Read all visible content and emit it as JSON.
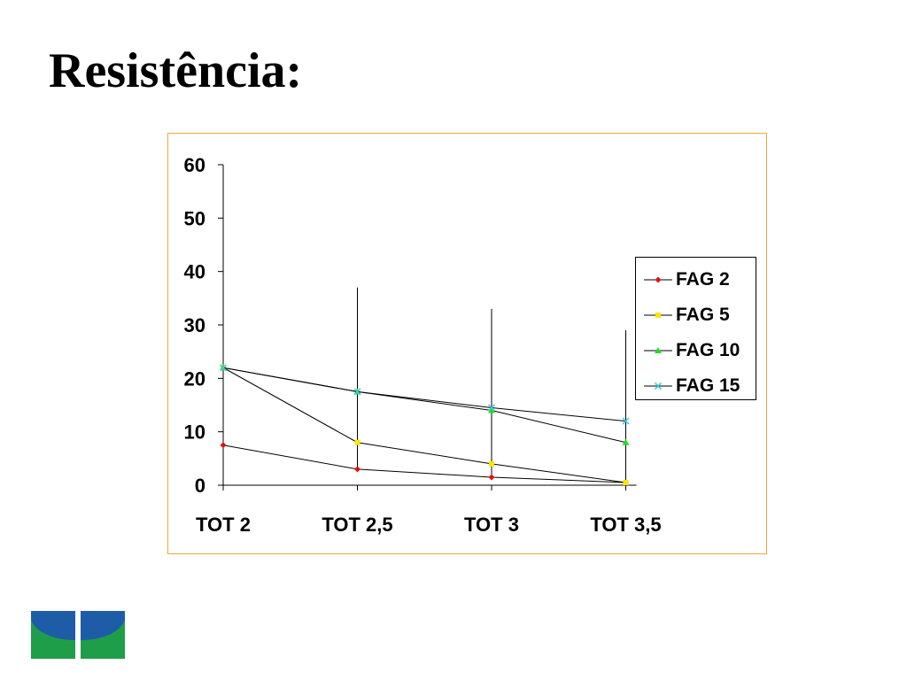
{
  "slide": {
    "title": "Resistência:"
  },
  "chart_data": {
    "type": "line",
    "title": "",
    "xlabel": "",
    "ylabel": "",
    "categories": [
      "TOT 2",
      "TOT 2,5",
      "TOT 3",
      "TOT 3,5"
    ],
    "ylim": [
      0,
      60
    ],
    "yticks": [
      0,
      10,
      20,
      30,
      40,
      50,
      60
    ],
    "grid": false,
    "legend_position": "right",
    "error_bars_upper": [
      [
        0,
        32,
        30,
        28
      ],
      [
        0,
        37,
        33,
        29
      ],
      [
        0,
        20,
        18,
        15
      ],
      [
        0,
        20,
        17,
        15
      ]
    ],
    "series": [
      {
        "name": "FAG 2",
        "values": [
          7.5,
          3.0,
          1.5,
          0.5
        ],
        "color": "#e01010",
        "marker": "diamond"
      },
      {
        "name": "FAG 5",
        "values": [
          22,
          8.0,
          4.0,
          0.5
        ],
        "color": "#ffe400",
        "marker": "square"
      },
      {
        "name": "FAG 10",
        "values": [
          22,
          17.5,
          14.0,
          8.0
        ],
        "color": "#22dd22",
        "marker": "triangle"
      },
      {
        "name": "FAG 15",
        "values": [
          22,
          17.5,
          14.5,
          12.0
        ],
        "color": "#44ccdd",
        "marker": "cross"
      }
    ]
  },
  "logo": {
    "name": "university-logo",
    "color_blue": "#1f5ca8",
    "color_green": "#1f9e4a"
  }
}
